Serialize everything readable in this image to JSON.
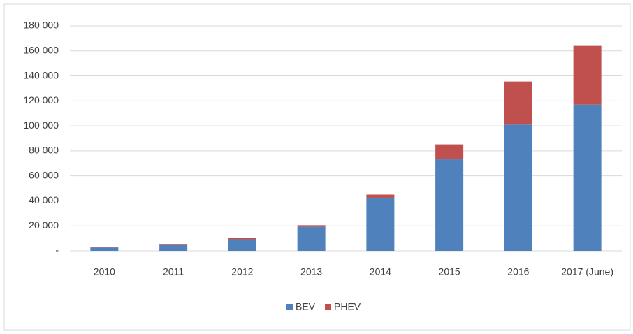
{
  "chart_data": {
    "type": "stacked_bar",
    "categories": [
      "2010",
      "2011",
      "2012",
      "2013",
      "2014",
      "2015",
      "2016",
      "2017 (June)"
    ],
    "series": [
      {
        "name": "BEV",
        "color": "#4f81bd",
        "values": [
          2600,
          4900,
          9200,
          19200,
          42500,
          73200,
          101000,
          117000
        ]
      },
      {
        "name": "PHEV",
        "color": "#c0504d",
        "values": [
          700,
          600,
          1300,
          1300,
          2500,
          12000,
          34500,
          47000
        ]
      }
    ],
    "ylim": [
      0,
      180000
    ],
    "yticks": [
      {
        "value": 0,
        "label": "-"
      },
      {
        "value": 20000,
        "label": "20 000"
      },
      {
        "value": 40000,
        "label": "40 000"
      },
      {
        "value": 60000,
        "label": "60 000"
      },
      {
        "value": 80000,
        "label": "80 000"
      },
      {
        "value": 100000,
        "label": "100 000"
      },
      {
        "value": 120000,
        "label": "120 000"
      },
      {
        "value": 140000,
        "label": "140 000"
      },
      {
        "value": 160000,
        "label": "160 000"
      },
      {
        "value": 180000,
        "label": "180 000"
      }
    ],
    "grid": true,
    "legend": "bottom"
  }
}
